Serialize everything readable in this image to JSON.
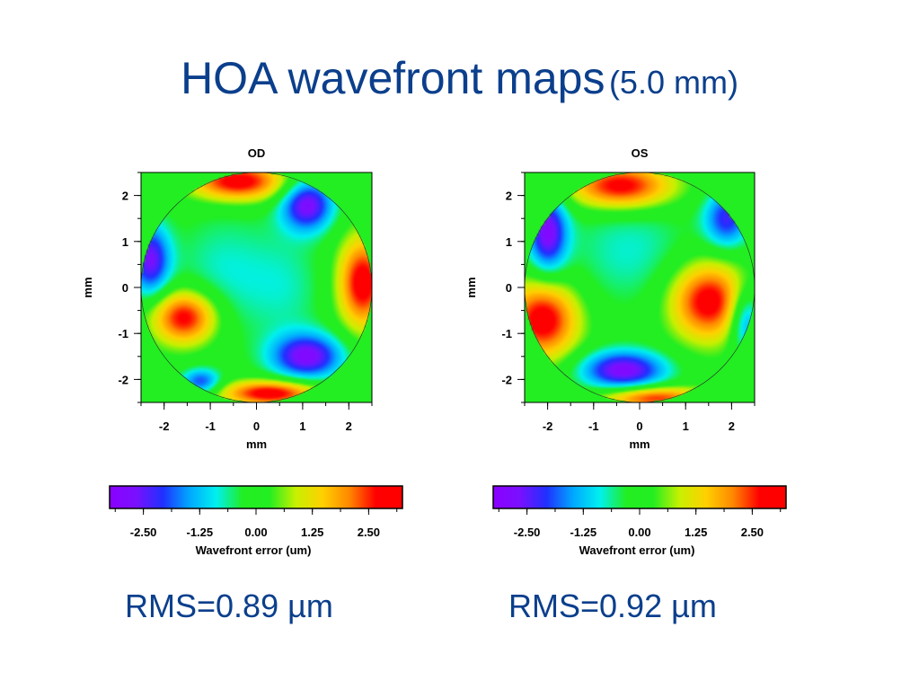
{
  "title": {
    "main": "HOA wavefront maps",
    "sub": "(5.0 mm)"
  },
  "colors": {
    "title": "#0b3f8c",
    "background_field": "#22ee22",
    "colormap": [
      "#8a00ff",
      "#7a10ff",
      "#2030ff",
      "#00a8ff",
      "#00f0f0",
      "#22ee22",
      "#22ee22",
      "#c8f000",
      "#ffd000",
      "#ff8800",
      "#ff0000",
      "#ff0000"
    ]
  },
  "colorbar": {
    "ticks": [
      "-2.50",
      "-1.25",
      "0.00",
      "1.25",
      "2.50"
    ],
    "tick_values": [
      -2.5,
      -1.25,
      0,
      1.25,
      2.5
    ],
    "range": [
      -3.25,
      3.25
    ],
    "label": "Wavefront error (um)"
  },
  "chart_data": [
    {
      "type": "heatmap",
      "title": "OD",
      "xlabel": "mm",
      "ylabel": "mm",
      "xlim": [
        -2.5,
        2.5
      ],
      "ylim": [
        -2.5,
        2.5
      ],
      "x_ticks": [
        "-2",
        "-1",
        "0",
        "1",
        "2"
      ],
      "y_ticks": [
        "2",
        "1",
        "0",
        "-1",
        "-2"
      ],
      "x_tick_values": [
        -2,
        -1,
        0,
        1,
        2
      ],
      "y_tick_values": [
        2,
        1,
        0,
        -1,
        -2
      ],
      "pupil_diameter_mm": 5.0,
      "rms": "RMS=0.89 µm",
      "features": [
        {
          "x": -0.4,
          "y": 2.3,
          "value": 3.0,
          "sx": 0.75,
          "sy": 0.3
        },
        {
          "x": 1.1,
          "y": 1.8,
          "value": -2.8,
          "sx": 0.4,
          "sy": 0.4
        },
        {
          "x": -2.3,
          "y": 0.6,
          "value": -2.6,
          "sx": 0.3,
          "sy": 0.55
        },
        {
          "x": 2.3,
          "y": 0.1,
          "value": 3.0,
          "sx": 0.38,
          "sy": 0.7
        },
        {
          "x": -1.55,
          "y": -0.65,
          "value": 3.0,
          "sx": 0.5,
          "sy": 0.42
        },
        {
          "x": 1.1,
          "y": -1.5,
          "value": -2.8,
          "sx": 0.55,
          "sy": 0.35
        },
        {
          "x": 0.3,
          "y": -2.3,
          "value": 3.0,
          "sx": 0.75,
          "sy": 0.2
        },
        {
          "x": -1.2,
          "y": -2.05,
          "value": -2.0,
          "sx": 0.3,
          "sy": 0.2
        },
        {
          "x": -0.7,
          "y": 0.3,
          "value": -0.8,
          "sx": 0.8,
          "sy": 1.0
        },
        {
          "x": 0.7,
          "y": 0.0,
          "value": -0.6,
          "sx": 0.6,
          "sy": 0.9
        }
      ]
    },
    {
      "type": "heatmap",
      "title": "OS",
      "xlabel": "mm",
      "ylabel": "mm",
      "xlim": [
        -2.5,
        2.5
      ],
      "ylim": [
        -2.5,
        2.5
      ],
      "x_ticks": [
        "-2",
        "-1",
        "0",
        "1",
        "2"
      ],
      "y_ticks": [
        "2",
        "1",
        "0",
        "-1",
        "-2"
      ],
      "x_tick_values": [
        -2,
        -1,
        0,
        1,
        2
      ],
      "y_tick_values": [
        2,
        1,
        0,
        -1,
        -2
      ],
      "pupil_diameter_mm": 5.0,
      "rms": "RMS=0.92 µm",
      "features": [
        {
          "x": -0.4,
          "y": 2.2,
          "value": 3.0,
          "sx": 0.8,
          "sy": 0.35
        },
        {
          "x": -2.0,
          "y": 1.2,
          "value": -2.8,
          "sx": 0.3,
          "sy": 0.6
        },
        {
          "x": 1.9,
          "y": 1.5,
          "value": -2.2,
          "sx": 0.35,
          "sy": 0.45
        },
        {
          "x": 1.5,
          "y": -0.3,
          "value": 3.0,
          "sx": 0.6,
          "sy": 0.6
        },
        {
          "x": -2.1,
          "y": -0.7,
          "value": 3.0,
          "sx": 0.55,
          "sy": 0.6
        },
        {
          "x": -0.35,
          "y": -1.8,
          "value": -2.9,
          "sx": 0.65,
          "sy": 0.3
        },
        {
          "x": 2.3,
          "y": -0.7,
          "value": -2.0,
          "sx": 0.25,
          "sy": 0.5
        },
        {
          "x": 0.3,
          "y": -2.4,
          "value": 2.6,
          "sx": 0.8,
          "sy": 0.18
        },
        {
          "x": -0.2,
          "y": 0.8,
          "value": -0.8,
          "sx": 1.0,
          "sy": 0.9
        }
      ]
    }
  ]
}
